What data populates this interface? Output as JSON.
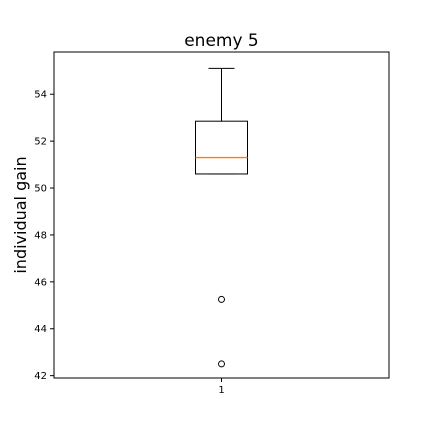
{
  "chart_data": {
    "type": "boxplot",
    "title": "enemy 5",
    "xlabel": "",
    "ylabel": "individual gain",
    "categories": [
      "1"
    ],
    "series": [
      {
        "whisker_low": 50.6,
        "q1": 50.6,
        "median": 51.3,
        "q3": 52.85,
        "whisker_high": 55.1,
        "outliers": [
          45.25,
          42.5
        ]
      }
    ],
    "ylim": [
      41.9,
      55.8
    ],
    "yticks": [
      42,
      44,
      46,
      48,
      50,
      52,
      54
    ],
    "xlim": [
      0.5,
      1.5
    ],
    "grid": false,
    "colors": {
      "box": "#000000",
      "median": "#ff7f0e",
      "outlier": "#000000",
      "background": "#ffffff"
    }
  }
}
